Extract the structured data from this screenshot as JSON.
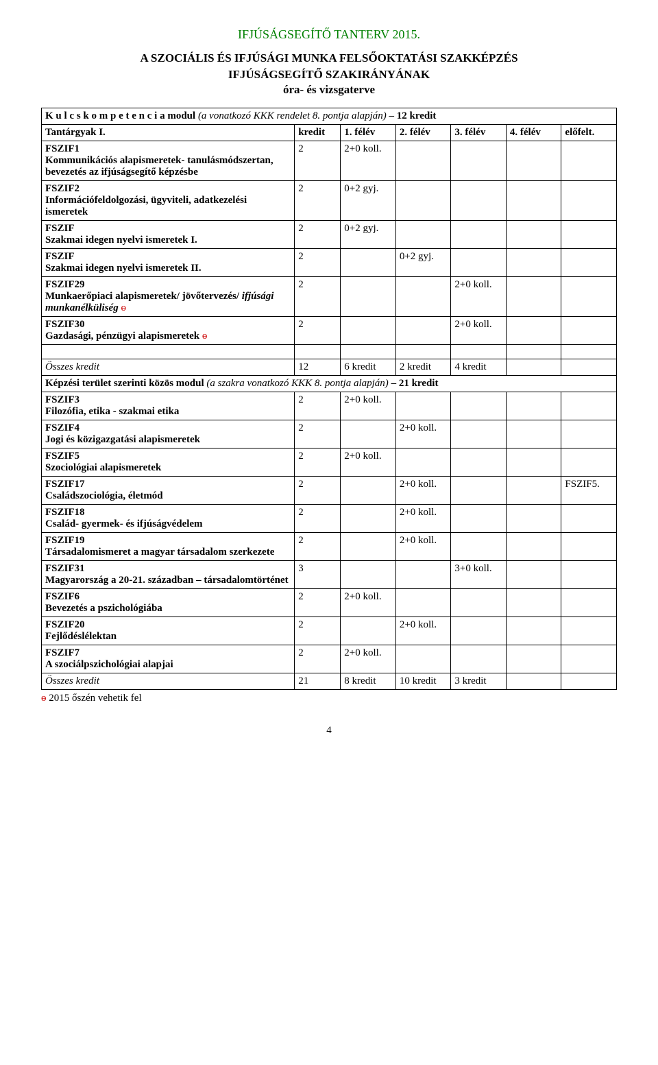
{
  "header": "IFJÚSÁGSEGÍTŐ TANTERV 2015.",
  "title_line1": "A SZOCIÁLIS ÉS IFJÚSÁGI MUNKA FELSŐOKTATÁSI SZAKKÉPZÉS",
  "title_line2": "IFJÚSÁGSEGÍTŐ SZAKIRÁNYÁNAK",
  "title_line3": "óra- és vizsgaterve",
  "section1_heading_pre": "K u l c s k o m p e t e n c i a  modul ",
  "section1_heading_mid": "(a vonatkozó KKK rendelet 8. pontja alapján)",
  "section1_heading_post": " – 12 kredit",
  "col_head_subject": "Tantárgyak I.",
  "col_head_kredit": "kredit",
  "col_head_s1": "1. félév",
  "col_head_s2": "2. félév",
  "col_head_s3": "3. félév",
  "col_head_s4": "4. félév",
  "col_head_elof": "előfelt.",
  "rows_a": [
    {
      "code": "FSZIF1",
      "name": "Kommunikációs alapismeretek- tanulásmódszertan, bevezetés az ifjúságsegítő képzésbe",
      "kredit": "2",
      "s1": "2+0 koll.",
      "s2": "",
      "s3": "",
      "s4": "",
      "elof": ""
    },
    {
      "code": "FSZIF2",
      "name": "Információfeldolgozási, ügyviteli, adatkezelési ismeretek",
      "kredit": "2",
      "s1": "0+2 gyj.",
      "s2": "",
      "s3": "",
      "s4": "",
      "elof": ""
    },
    {
      "code": "FSZIF",
      "name": "Szakmai idegen nyelvi ismeretek I.",
      "kredit": "2",
      "s1": "0+2 gyj.",
      "s2": "",
      "s3": "",
      "s4": "",
      "elof": ""
    },
    {
      "code": "FSZIF",
      "name": "Szakmai idegen nyelvi ismeretek II.",
      "kredit": "2",
      "s1": "",
      "s2": "0+2 gyj.",
      "s3": "",
      "s4": "",
      "elof": ""
    },
    {
      "code": "FSZIF29",
      "name": "Munkaerőpiaci alapismeretek/ jövőtervezés/ ",
      "italic_suffix": "ifjúsági munkanélküliség",
      "theta": " ɵ",
      "kredit": "2",
      "s1": "",
      "s2": "",
      "s3": "2+0 koll.",
      "s4": "",
      "elof": ""
    },
    {
      "code": "FSZIF30",
      "name": "Gazdasági, pénzügyi alapismeretek ",
      "theta": "ɵ",
      "kredit": "2",
      "s1": "",
      "s2": "",
      "s3": "2+0 koll.",
      "s4": "",
      "elof": ""
    }
  ],
  "total_a": {
    "label": "Összes kredit",
    "kredit": "12",
    "s1": "6 kredit",
    "s2": "2 kredit",
    "s3": "4 kredit",
    "s4": "",
    "elof": ""
  },
  "section2_heading_pre": "Képzési terület szerinti közös modul ",
  "section2_heading_mid": "(a szakra vonatkozó KKK 8. pontja alapján)",
  "section2_heading_post": " – 21 kredit",
  "rows_b": [
    {
      "code": "FSZIF3",
      "name": "Filozófia, etika - szakmai etika",
      "kredit": "2",
      "s1": "2+0 koll.",
      "s2": "",
      "s3": "",
      "s4": "",
      "elof": ""
    },
    {
      "code": "FSZIF4",
      "name": "Jogi és közigazgatási alapismeretek",
      "kredit": "2",
      "s1": "",
      "s2": "2+0 koll.",
      "s3": "",
      "s4": "",
      "elof": ""
    },
    {
      "code": "FSZIF5",
      "name": "Szociológiai alapismeretek",
      "kredit": "2",
      "s1": "2+0 koll.",
      "s2": "",
      "s3": "",
      "s4": "",
      "elof": ""
    },
    {
      "code": "FSZIF17",
      "name": "Családszociológia, életmód",
      "kredit": "2",
      "s1": "",
      "s2": "2+0 koll.",
      "s3": "",
      "s4": "",
      "elof": "FSZIF5."
    },
    {
      "code": "FSZIF18",
      "name": "Család- gyermek- és ifjúságvédelem",
      "kredit": "2",
      "s1": "",
      "s2": "2+0 koll.",
      "s3": "",
      "s4": "",
      "elof": ""
    },
    {
      "code": "FSZIF19",
      "name": "Társadalomismeret a magyar társadalom szerkezete",
      "kredit": "2",
      "s1": "",
      "s2": "2+0 koll.",
      "s3": "",
      "s4": "",
      "elof": ""
    },
    {
      "code": "FSZIF31",
      "name": "Magyarország a 20-21. században – társadalomtörténet",
      "kredit": "3",
      "s1": "",
      "s2": "",
      "s3": "3+0 koll.",
      "s4": "",
      "elof": ""
    },
    {
      "code": "FSZIF6",
      "name": "Bevezetés a pszichológiába",
      "kredit": "2",
      "s1": "2+0 koll.",
      "s2": "",
      "s3": "",
      "s4": "",
      "elof": ""
    },
    {
      "code": "FSZIF20",
      "name": "Fejlődéslélektan",
      "kredit": "2",
      "s1": "",
      "s2": "2+0 koll.",
      "s3": "",
      "s4": "",
      "elof": ""
    },
    {
      "code": "FSZIF7",
      "name": "A szociálpszichológiai alapjai",
      "kredit": "2",
      "s1": "2+0 koll.",
      "s2": "",
      "s3": "",
      "s4": "",
      "elof": ""
    }
  ],
  "total_b": {
    "label": "Összes kredit",
    "kredit": "21",
    "s1": "8 kredit",
    "s2": "10 kredit",
    "s3": "3 kredit",
    "s4": "",
    "elof": ""
  },
  "footnote_theta": "ɵ",
  "footnote_text": " 2015 őszén vehetik fel",
  "page_number": "4",
  "colors": {
    "green": "#008000",
    "red": "#cc0000",
    "black": "#000000",
    "bg": "#ffffff",
    "border": "#000000"
  }
}
